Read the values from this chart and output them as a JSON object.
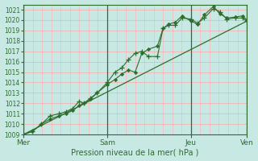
{
  "xlabel": "Pression niveau de la mer( hPa )",
  "bg_color": "#c8e8e4",
  "line_color": "#2d6e2d",
  "tick_color": "#2d6e2d",
  "grid_color_h": "#c0d8d4",
  "grid_color_v": "#c0d8d4",
  "red_grid_color": "#e8a0a0",
  "ylim": [
    1009,
    1021.5
  ],
  "yticks": [
    1009,
    1010,
    1011,
    1012,
    1013,
    1014,
    1015,
    1016,
    1017,
    1018,
    1019,
    1020,
    1021
  ],
  "day_positions": [
    0.0,
    0.375,
    0.75,
    1.0
  ],
  "day_labels": [
    "Mer",
    "Sam",
    "Jeu",
    "Ven"
  ],
  "minor_v_count": 24,
  "line1_x": [
    0.0,
    0.04,
    0.08,
    0.12,
    0.16,
    0.19,
    0.22,
    0.25,
    0.27,
    0.3,
    0.33,
    0.375,
    0.41,
    0.44,
    0.47,
    0.5,
    0.53,
    0.56,
    0.6,
    0.625,
    0.65,
    0.68,
    0.71,
    0.75,
    0.78,
    0.81,
    0.85,
    0.88,
    0.91,
    0.95,
    0.98,
    1.0
  ],
  "line1_y": [
    1009.0,
    1009.3,
    1010.0,
    1010.8,
    1011.0,
    1011.2,
    1011.5,
    1012.2,
    1012.0,
    1012.5,
    1013.0,
    1014.0,
    1015.0,
    1015.4,
    1016.2,
    1016.8,
    1017.0,
    1016.5,
    1016.5,
    1019.2,
    1019.5,
    1019.5,
    1020.2,
    1020.1,
    1019.7,
    1020.2,
    1021.1,
    1020.8,
    1020.1,
    1020.2,
    1020.2,
    1019.9
  ],
  "line2_x": [
    0.0,
    0.04,
    0.08,
    0.12,
    0.16,
    0.19,
    0.22,
    0.25,
    0.27,
    0.3,
    0.33,
    0.375,
    0.41,
    0.44,
    0.47,
    0.5,
    0.53,
    0.56,
    0.6,
    0.625,
    0.65,
    0.68,
    0.71,
    0.75,
    0.78,
    0.81,
    0.85,
    0.88,
    0.91,
    0.95,
    0.98,
    1.0
  ],
  "line2_y": [
    1009.0,
    1009.3,
    1010.0,
    1010.5,
    1010.8,
    1011.0,
    1011.3,
    1011.8,
    1012.0,
    1012.4,
    1013.0,
    1013.8,
    1014.3,
    1014.8,
    1015.2,
    1015.0,
    1016.8,
    1017.2,
    1017.5,
    1019.2,
    1019.6,
    1019.8,
    1020.4,
    1019.9,
    1019.6,
    1020.5,
    1021.3,
    1020.6,
    1020.2,
    1020.3,
    1020.4,
    1020.0
  ],
  "line3_x": [
    0.0,
    1.0
  ],
  "line3_y": [
    1009.0,
    1019.9
  ],
  "xlim": [
    0.0,
    1.0
  ],
  "figsize": [
    3.2,
    2.0
  ],
  "dpi": 100
}
